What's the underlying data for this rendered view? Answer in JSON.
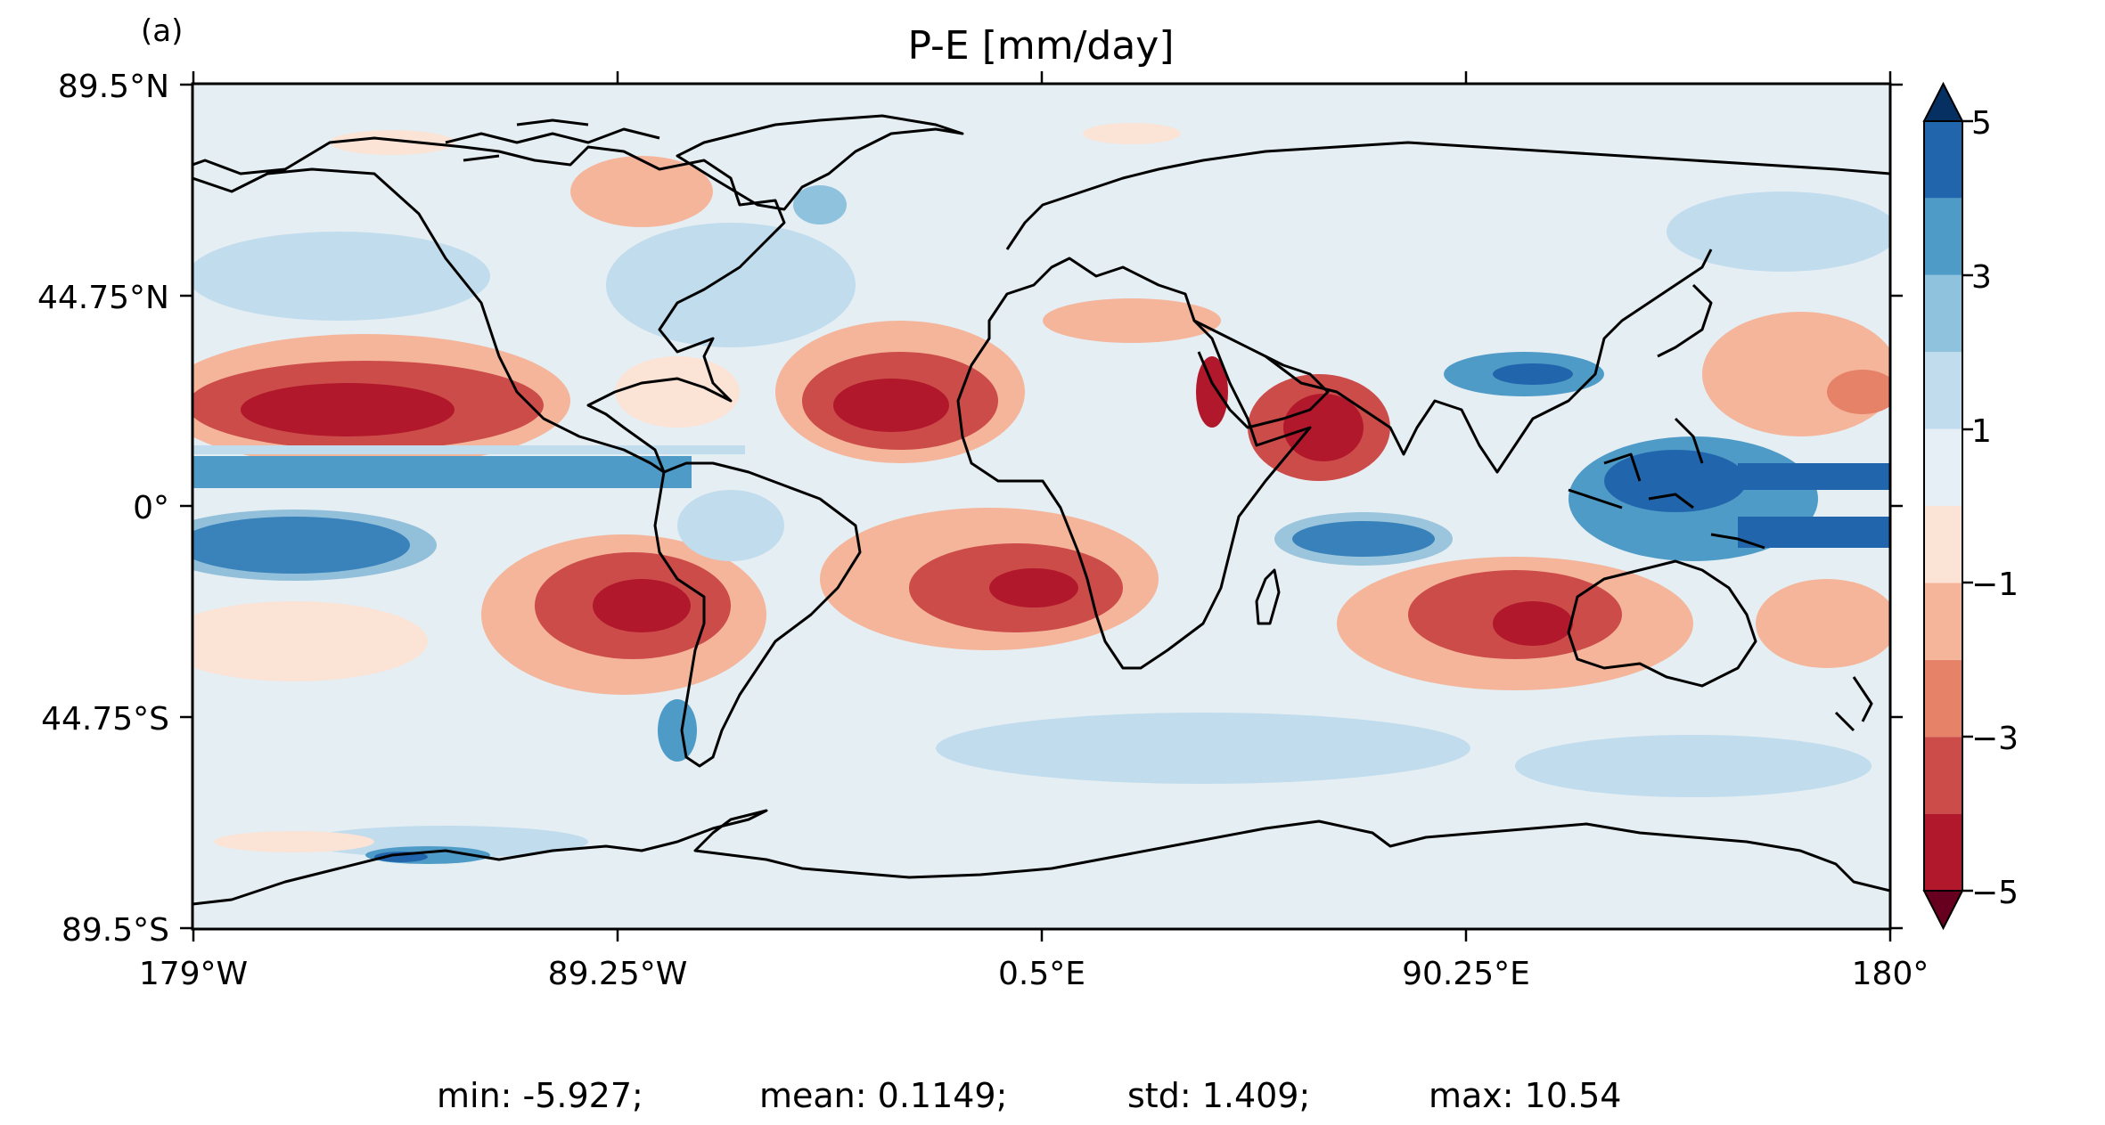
{
  "panel_label": "(a)",
  "title": "P-E [mm/day]",
  "axes": {
    "y_ticks": [
      "89.5°N",
      "44.75°N",
      "0°",
      "44.75°S",
      "89.5°S"
    ],
    "x_ticks": [
      "179°W",
      "89.25°W",
      "0.5°E",
      "90.25°E",
      "180°"
    ]
  },
  "colorbar": {
    "levels": [
      -5,
      -4,
      -3,
      -2,
      -1,
      0,
      1,
      2,
      3,
      4,
      5
    ],
    "tick_labels": [
      "5",
      "3",
      "1",
      "−1",
      "−3",
      "−5"
    ],
    "extend": "both",
    "colors_low_to_high": [
      "#b2182b",
      "#cc4c4a",
      "#e58268",
      "#f4b59a",
      "#fbe3d6",
      "#e5eff5",
      "#c0dced",
      "#8fc2dd",
      "#4f9bc7",
      "#2166ac"
    ],
    "under_color": "#67001f",
    "over_color": "#053061"
  },
  "stats": {
    "min": "min: -5.927;",
    "mean": "mean: 0.1149;",
    "std": "std: 1.409;",
    "max": "max: 10.54"
  },
  "map": {
    "projection": "PlateCarree",
    "variable": "precipitation minus evaporation",
    "coastlines": true
  }
}
